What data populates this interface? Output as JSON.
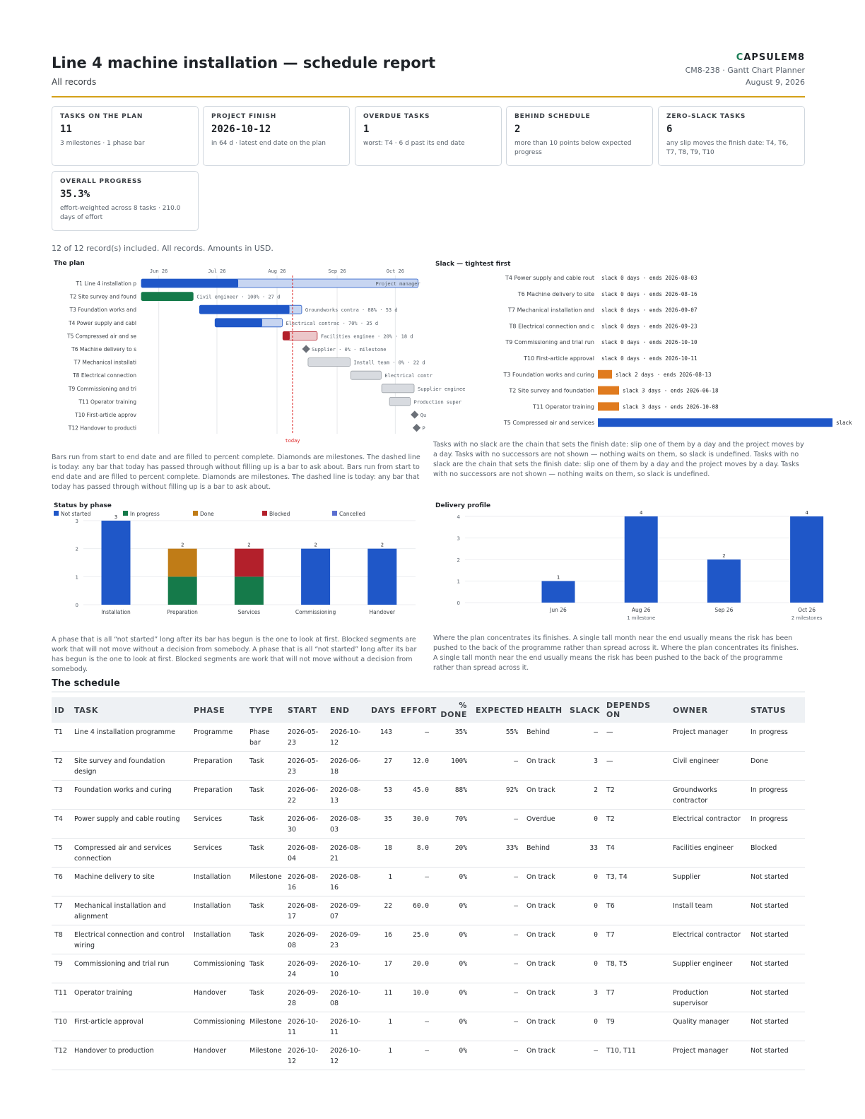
{
  "header": {
    "title": "Line 4 machine installation — schedule report",
    "subtitle": "All records",
    "brand_mark": "C",
    "brand_rest": "APSULEM8",
    "doc_ref": "CM8-238 · Gantt Chart Planner",
    "date": "August 9, 2026",
    "accent_color": "#d4a017"
  },
  "cards": [
    {
      "label": "TASKS ON THE PLAN",
      "value": "11",
      "note": "3 milestones · 1 phase bar"
    },
    {
      "label": "PROJECT FINISH",
      "value": "2026-10-12",
      "note": "in 64 d · latest end date on the plan"
    },
    {
      "label": "OVERDUE TASKS",
      "value": "1",
      "note": "worst: T4 · 6 d past its end date"
    },
    {
      "label": "BEHIND SCHEDULE",
      "value": "2",
      "note": "more than 10 points below expected progress"
    },
    {
      "label": "ZERO-SLACK TASKS",
      "value": "6",
      "note": "any slip moves the finish date: T4, T6, T7, T8, T9, T10"
    },
    {
      "label": "OVERALL PROGRESS",
      "value": "35.3%",
      "note": "effort-weighted across 8 tasks · 210.0 days of effort"
    }
  ],
  "records_note": "12 of 12 record(s) included. All records. Amounts in USD.",
  "plan": {
    "title": "The plan",
    "today_label": "today",
    "note": "Bars run from start to end date and are filled to percent complete. Diamonds are milestones. The dashed line is today: any bar that today has passed through without filling up is a bar to ask about. Bars run from start to end date and are filled to percent complete. Diamonds are milestones. The dashed line is today: any bar that today has passed through without filling up is a bar to ask about."
  },
  "slack": {
    "title": "Slack — tightest first",
    "note": "Tasks with no slack are the chain that sets the finish date: slip one of them by a day and the project moves by a day. Tasks with no successors are not shown — nothing waits on them, so slack is undefined. Tasks with no slack are the chain that sets the finish date: slip one of them by a day and the project moves by a day. Tasks with no successors are not shown — nothing waits on them, so slack is undefined."
  },
  "phase_status": {
    "title": "Status by phase",
    "note": "A phase that is all “not started” long after its bar has begun is the one to look at first. Blocked segments are work that will not move without a decision from somebody. A phase that is all “not started” long after its bar has begun is the one to look at first. Blocked segments are work that will not move without a decision from somebody."
  },
  "delivery": {
    "title": "Delivery profile",
    "note": "Where the plan concentrates its finishes. A single tall month near the end usually means the risk has been pushed to the back of the programme rather than spread across it. Where the plan concentrates its finishes. A single tall month near the end usually means the risk has been pushed to the back of the programme rather than spread across it."
  },
  "chart_data": [
    {
      "type": "bar",
      "chart": "gantt",
      "x_ticks": [
        "Jun 26",
        "Jul 26",
        "Aug 26",
        "Sep 26",
        "Oct 26"
      ],
      "today": "2026-08-09",
      "tasks": [
        {
          "label": "T1 Line 4 installation p",
          "start": "2026-05-23",
          "end": "2026-10-12",
          "pct": 35,
          "kind": "phase",
          "color": "#1f57c8",
          "bar_label": "Project manager"
        },
        {
          "label": "T2 Site survey and found",
          "start": "2026-05-23",
          "end": "2026-06-18",
          "pct": 100,
          "kind": "task",
          "color": "#157a4a",
          "bar_label": "Civil engineer · 100% · 27 d"
        },
        {
          "label": "T3 Foundation works and",
          "start": "2026-06-22",
          "end": "2026-08-13",
          "pct": 88,
          "kind": "task",
          "color": "#1f57c8",
          "bar_label": "Groundworks contra · 88% · 53 d"
        },
        {
          "label": "T4 Power supply and cabl",
          "start": "2026-06-30",
          "end": "2026-08-03",
          "pct": 70,
          "kind": "task",
          "color": "#1f57c8",
          "bar_label": "Electrical contrac · 70% · 35 d"
        },
        {
          "label": "T5 Compressed air and se",
          "start": "2026-08-04",
          "end": "2026-08-21",
          "pct": 20,
          "kind": "task",
          "color": "#b3202b",
          "bar_label": "Facilities enginee · 20% · 18 d"
        },
        {
          "label": "T6 Machine delivery to s",
          "start": "2026-08-16",
          "end": "2026-08-16",
          "pct": 0,
          "kind": "milestone",
          "color": "#6b7078",
          "bar_label": "Supplier · 0% · milestone"
        },
        {
          "label": "T7 Mechanical installati",
          "start": "2026-08-17",
          "end": "2026-09-07",
          "pct": 0,
          "kind": "task",
          "color": "#9aa0a6",
          "bar_label": "Install team · 0% · 22 d"
        },
        {
          "label": "T8 Electrical connection",
          "start": "2026-09-08",
          "end": "2026-09-23",
          "pct": 0,
          "kind": "task",
          "color": "#9aa0a6",
          "bar_label": "Electrical contr"
        },
        {
          "label": "T9 Commissioning and tri",
          "start": "2026-09-24",
          "end": "2026-10-10",
          "pct": 0,
          "kind": "task",
          "color": "#9aa0a6",
          "bar_label": "Supplier enginee"
        },
        {
          "label": "T11 Operator training",
          "start": "2026-09-28",
          "end": "2026-10-08",
          "pct": 0,
          "kind": "task",
          "color": "#9aa0a6",
          "bar_label": "Production super"
        },
        {
          "label": "T10 First-article approv",
          "start": "2026-10-11",
          "end": "2026-10-11",
          "pct": 0,
          "kind": "milestone",
          "color": "#6b7078",
          "bar_label": "Qu"
        },
        {
          "label": "T12 Handover to producti",
          "start": "2026-10-12",
          "end": "2026-10-12",
          "pct": 0,
          "kind": "milestone",
          "color": "#6b7078",
          "bar_label": "P"
        }
      ]
    },
    {
      "type": "bar",
      "chart": "slack",
      "orientation": "horizontal",
      "categories": [
        "T4 Power supply and cable rout",
        "T6 Machine delivery to site",
        "T7 Mechanical installation and",
        "T8 Electrical connection and c",
        "T9 Commissioning and trial run",
        "T10 First-article approval",
        "T3 Foundation works and curing",
        "T2 Site survey and foundation",
        "T11 Operator training",
        "T5 Compressed air and services"
      ],
      "values": [
        0,
        0,
        0,
        0,
        0,
        0,
        2,
        3,
        3,
        33
      ],
      "labels": [
        "slack 0 days · ends 2026-08-03",
        "slack 0 days · ends 2026-08-16",
        "slack 0 days · ends 2026-09-07",
        "slack 0 days · ends 2026-09-23",
        "slack 0 days · ends 2026-10-10",
        "slack 0 days · ends 2026-10-11",
        "slack 2 days · ends 2026-08-13",
        "slack 3 days · ends 2026-06-18",
        "slack 3 days · ends 2026-10-08",
        "slack"
      ],
      "colors": [
        "#e07b1f",
        "#e07b1f",
        "#e07b1f",
        "#1f57c8"
      ]
    },
    {
      "type": "bar",
      "chart": "stacked",
      "categories": [
        "Installation",
        "Preparation",
        "Services",
        "Commissioning",
        "Handover"
      ],
      "series": [
        {
          "name": "Not started",
          "color": "#1f57c8",
          "values": [
            3,
            0,
            0,
            2,
            2
          ]
        },
        {
          "name": "In progress",
          "color": "#157a4a",
          "values": [
            0,
            1,
            1,
            0,
            0
          ]
        },
        {
          "name": "Done",
          "color": "#c07c17",
          "values": [
            0,
            1,
            0,
            0,
            0
          ]
        },
        {
          "name": "Blocked",
          "color": "#b3202b",
          "values": [
            0,
            0,
            1,
            0,
            0
          ]
        },
        {
          "name": "Cancelled",
          "color": "#5b6fd0",
          "values": [
            0,
            0,
            0,
            0,
            0
          ]
        }
      ],
      "totals": [
        3,
        2,
        2,
        2,
        2
      ],
      "yticks": [
        0,
        1,
        2,
        3
      ],
      "ylim": [
        0,
        3
      ]
    },
    {
      "type": "bar",
      "chart": "delivery",
      "categories": [
        "Jun 26",
        "Aug 26",
        "Sep 26",
        "Oct 26"
      ],
      "subs": [
        "",
        "1 milestone",
        "",
        "2 milestones"
      ],
      "values": [
        1,
        4,
        2,
        4
      ],
      "yticks": [
        0,
        1,
        2,
        3,
        4
      ],
      "ylim": [
        0,
        4
      ],
      "color": "#1f57c8"
    }
  ],
  "schedule": {
    "title": "The schedule",
    "columns": [
      "ID",
      "TASK",
      "PHASE",
      "TYPE",
      "START",
      "END",
      "DAYS",
      "EFFORT",
      "% DONE",
      "EXPECTED",
      "HEALTH",
      "SLACK",
      "DEPENDS ON",
      "OWNER",
      "STATUS"
    ],
    "rows": [
      [
        "T1",
        "Line 4 installation programme",
        "Programme",
        "Phase bar",
        "2026-05-23",
        "2026-10-12",
        "143",
        "–",
        "35%",
        "55%",
        "Behind",
        "–",
        "—",
        "Project manager",
        "In progress"
      ],
      [
        "T2",
        "Site survey and foundation design",
        "Preparation",
        "Task",
        "2026-05-23",
        "2026-06-18",
        "27",
        "12.0",
        "100%",
        "–",
        "On track",
        "3",
        "—",
        "Civil engineer",
        "Done"
      ],
      [
        "T3",
        "Foundation works and curing",
        "Preparation",
        "Task",
        "2026-06-22",
        "2026-08-13",
        "53",
        "45.0",
        "88%",
        "92%",
        "On track",
        "2",
        "T2",
        "Groundworks contractor",
        "In progress"
      ],
      [
        "T4",
        "Power supply and cable routing",
        "Services",
        "Task",
        "2026-06-30",
        "2026-08-03",
        "35",
        "30.0",
        "70%",
        "–",
        "Overdue",
        "0",
        "T2",
        "Electrical contractor",
        "In progress"
      ],
      [
        "T5",
        "Compressed air and services connection",
        "Services",
        "Task",
        "2026-08-04",
        "2026-08-21",
        "18",
        "8.0",
        "20%",
        "33%",
        "Behind",
        "33",
        "T4",
        "Facilities engineer",
        "Blocked"
      ],
      [
        "T6",
        "Machine delivery to site",
        "Installation",
        "Milestone",
        "2026-08-16",
        "2026-08-16",
        "1",
        "–",
        "0%",
        "–",
        "On track",
        "0",
        "T3, T4",
        "Supplier",
        "Not started"
      ],
      [
        "T7",
        "Mechanical installation and alignment",
        "Installation",
        "Task",
        "2026-08-17",
        "2026-09-07",
        "22",
        "60.0",
        "0%",
        "–",
        "On track",
        "0",
        "T6",
        "Install team",
        "Not started"
      ],
      [
        "T8",
        "Electrical connection and control wiring",
        "Installation",
        "Task",
        "2026-09-08",
        "2026-09-23",
        "16",
        "25.0",
        "0%",
        "–",
        "On track",
        "0",
        "T7",
        "Electrical contractor",
        "Not started"
      ],
      [
        "T9",
        "Commissioning and trial run",
        "Commissioning",
        "Task",
        "2026-09-24",
        "2026-10-10",
        "17",
        "20.0",
        "0%",
        "–",
        "On track",
        "0",
        "T8, T5",
        "Supplier engineer",
        "Not started"
      ],
      [
        "T11",
        "Operator training",
        "Handover",
        "Task",
        "2026-09-28",
        "2026-10-08",
        "11",
        "10.0",
        "0%",
        "–",
        "On track",
        "3",
        "T7",
        "Production supervisor",
        "Not started"
      ],
      [
        "T10",
        "First-article approval",
        "Commissioning",
        "Milestone",
        "2026-10-11",
        "2026-10-11",
        "1",
        "–",
        "0%",
        "–",
        "On track",
        "0",
        "T9",
        "Quality manager",
        "Not started"
      ],
      [
        "T12",
        "Handover to production",
        "Handover",
        "Milestone",
        "2026-10-12",
        "2026-10-12",
        "1",
        "–",
        "0%",
        "–",
        "On track",
        "–",
        "T10, T11",
        "Project manager",
        "Not started"
      ]
    ]
  }
}
